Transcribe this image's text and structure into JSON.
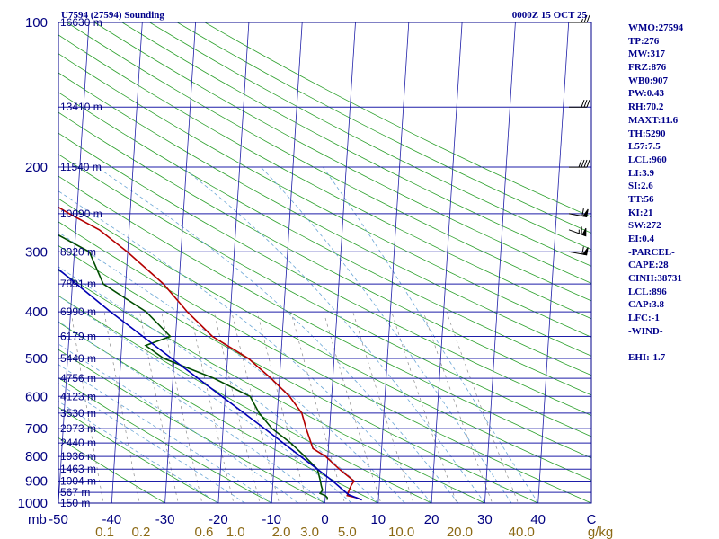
{
  "header": {
    "station": "U7594 (27594) Sounding",
    "time": "0000Z 15 OCT 25"
  },
  "colors": {
    "frame": "#00008b",
    "isobar": "#1e1ea8",
    "isotherm": "#1e1ea8",
    "dry_adiabat": "#2ca02c",
    "moist_adiabat": "#6aa6d6",
    "mixing_ratio": "#8c8c8c",
    "temperature": "#b40000",
    "dewpoint": "#004d00",
    "parcel": "#0000b4",
    "mixing_label": "#8b6914"
  },
  "indices": [
    "WMO:27594",
    "TP:276",
    "MW:317",
    "FRZ:876",
    "WB0:907",
    "PW:0.43",
    "RH:70.2",
    "MAXT:11.6",
    "TH:5290",
    "L57:7.5",
    "LCL:960",
    "LI:3.9",
    "SI:2.6",
    "TT:56",
    "KI:21",
    "SW:272",
    "EI:0.4",
    "-PARCEL-",
    "CAPE:28",
    "CINH:38731",
    "LCL:896",
    "CAP:3.8",
    "LFC:-1",
    "-WIND-",
    "",
    "EHI:-1.7"
  ],
  "chart_data": {
    "type": "line",
    "title": "U7594 (27594) Sounding",
    "subtitle": "0000Z 15 OCT 25",
    "xlabel": "C",
    "ylabel": "mb",
    "xlim": [
      -50,
      50
    ],
    "ylim": [
      1000,
      100
    ],
    "skew_per_decade": 34,
    "pressure_levels": [
      1000,
      900,
      800,
      700,
      600,
      500,
      400,
      300,
      200,
      100
    ],
    "pressure_tick_labels": [
      "1000",
      "900",
      "800",
      "700",
      "600",
      "500",
      "400",
      "300",
      "200",
      "100"
    ],
    "temperature_ticks": [
      -50,
      -40,
      -30,
      -20,
      -10,
      0,
      10,
      20,
      30,
      40
    ],
    "temperature_tick_labels": [
      "-50",
      "-40",
      "-30",
      "-20",
      "-10",
      "0",
      "10",
      "20",
      "30",
      "40"
    ],
    "temperature_unit_label": "C",
    "pressure_unit_label": "mb",
    "mixing_ratio_labels": [
      {
        "text": "0.1",
        "value": 0.1
      },
      {
        "text": "0.2",
        "value": 0.2
      },
      {
        "text": "0.6",
        "value": 0.6
      },
      {
        "text": "1.0",
        "value": 1.0
      },
      {
        "text": "2.0",
        "value": 2.0
      },
      {
        "text": "3.0",
        "value": 3.0
      },
      {
        "text": "5.0",
        "value": 5.0
      },
      {
        "text": "10.0",
        "value": 10.0
      },
      {
        "text": "20.0",
        "value": 20.0
      },
      {
        "text": "40.0",
        "value": 40.0
      }
    ],
    "mixing_ratio_unit": "g/kg",
    "height_labels": [
      {
        "p": 100,
        "text": "16630 m"
      },
      {
        "p": 150,
        "text": "13410 m"
      },
      {
        "p": 200,
        "text": "11540 m"
      },
      {
        "p": 250,
        "text": "10090 m"
      },
      {
        "p": 300,
        "text": "8920 m"
      },
      {
        "p": 350,
        "text": "7891 m"
      },
      {
        "p": 400,
        "text": "6990 m"
      },
      {
        "p": 450,
        "text": "6179 m"
      },
      {
        "p": 500,
        "text": "5440 m"
      },
      {
        "p": 550,
        "text": "4756 m"
      },
      {
        "p": 600,
        "text": "4123 m"
      },
      {
        "p": 650,
        "text": "3530 m"
      },
      {
        "p": 700,
        "text": "2973 m"
      },
      {
        "p": 750,
        "text": "2440 m"
      },
      {
        "p": 800,
        "text": "1936 m"
      },
      {
        "p": 850,
        "text": "1463 m"
      },
      {
        "p": 900,
        "text": "1004 m"
      },
      {
        "p": 950,
        "text": "567 m"
      },
      {
        "p": 1000,
        "text": "150 m"
      }
    ],
    "series": [
      {
        "name": "Temperature",
        "points": [
          [
            985,
            6.9
          ],
          [
            975,
            5.9
          ],
          [
            965,
            4.1
          ],
          [
            940,
            4.4
          ],
          [
            920,
            4.7
          ],
          [
            900,
            5.2
          ],
          [
            850,
            2.3
          ],
          [
            800,
            -0.4
          ],
          [
            770,
            -2.9
          ],
          [
            700,
            -4.4
          ],
          [
            650,
            -5.4
          ],
          [
            600,
            -7.9
          ],
          [
            550,
            -11.6
          ],
          [
            500,
            -16.1
          ],
          [
            450,
            -23.1
          ],
          [
            400,
            -28.1
          ],
          [
            350,
            -32.9
          ],
          [
            300,
            -40.1
          ],
          [
            270,
            -45.6
          ],
          [
            250,
            -51.4
          ],
          [
            240,
            -54.2
          ],
          [
            200,
            -57.6
          ],
          [
            150,
            -63.2
          ],
          [
            130,
            -66.8
          ],
          [
            100,
            -75.2
          ]
        ]
      },
      {
        "name": "Dewpoint",
        "points": [
          [
            985,
            0.4
          ],
          [
            975,
            0.4
          ],
          [
            965,
            0.0
          ],
          [
            955,
            -1.0
          ],
          [
            940,
            -0.6
          ],
          [
            920,
            -0.9
          ],
          [
            900,
            -1.1
          ],
          [
            850,
            -1.8
          ],
          [
            800,
            -4.3
          ],
          [
            750,
            -7.1
          ],
          [
            700,
            -10.8
          ],
          [
            650,
            -13.4
          ],
          [
            600,
            -15.3
          ],
          [
            550,
            -22.3
          ],
          [
            500,
            -32.0
          ],
          [
            470,
            -35.5
          ],
          [
            450,
            -31.0
          ],
          [
            400,
            -35.8
          ],
          [
            350,
            -44.2
          ],
          [
            300,
            -47.2
          ],
          [
            270,
            -55.1
          ],
          [
            250,
            -60.2
          ],
          [
            240,
            -59.0
          ],
          [
            200,
            -66.3
          ],
          [
            150,
            -74.2
          ],
          [
            140,
            -75.4
          ],
          [
            100,
            -86.5
          ]
        ]
      },
      {
        "name": "Parcel",
        "points": [
          [
            985,
            6.9
          ],
          [
            960,
            4.3
          ],
          [
            900,
            1.2
          ],
          [
            850,
            -1.8
          ],
          [
            800,
            -5.1
          ],
          [
            700,
            -12.2
          ],
          [
            600,
            -20.6
          ],
          [
            500,
            -30.5
          ],
          [
            400,
            -42.5
          ],
          [
            300,
            -57.0
          ],
          [
            250,
            -65.8
          ],
          [
            200,
            -76.0
          ],
          [
            150,
            -87.5
          ],
          [
            100,
            -102.5
          ]
        ]
      }
    ],
    "wind_barbs": [
      {
        "p": 100,
        "dir": 270,
        "kt": 25
      },
      {
        "p": 150,
        "dir": 270,
        "kt": 30
      },
      {
        "p": 200,
        "dir": 270,
        "kt": 40
      },
      {
        "p": 250,
        "dir": 280,
        "kt": 60
      },
      {
        "p": 270,
        "dir": 290,
        "kt": 65
      },
      {
        "p": 300,
        "dir": 280,
        "kt": 60
      }
    ]
  }
}
